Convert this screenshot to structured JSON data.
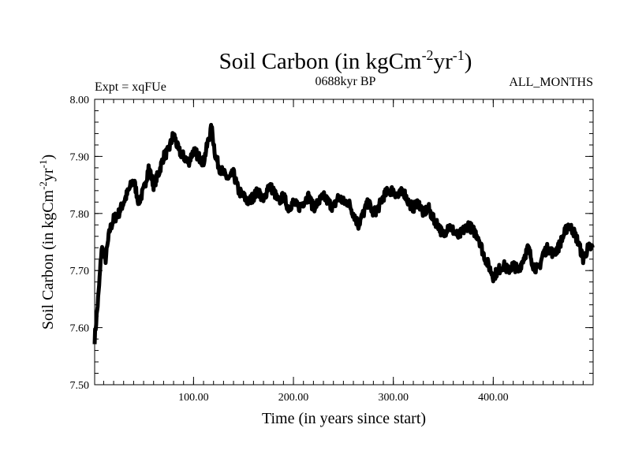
{
  "chart_data": {
    "type": "line",
    "title": {
      "main": "Soil Carbon (in kgCm",
      "sup1": "-2",
      "mid": "yr",
      "sup2": "-1",
      "end": ")"
    },
    "left_label": "Expt = xqFUe",
    "center_label": "0688kyr BP",
    "right_label": "ALL_MONTHS",
    "xlabel": "Time (in years since start)",
    "ylabel": {
      "main": "Soil Carbon (in kgCm",
      "sup1": "-2",
      "mid": "yr",
      "sup2": "-1",
      "end": ")"
    },
    "xlim": [
      1,
      500
    ],
    "ylim": [
      7.5,
      8.0
    ],
    "x_ticks": [
      100,
      200,
      300,
      400
    ],
    "x_tick_labels": [
      "100.00",
      "200.00",
      "300.00",
      "400.00"
    ],
    "y_ticks": [
      7.5,
      7.6,
      7.7,
      7.8,
      7.9,
      8.0
    ],
    "y_tick_labels": [
      "7.50",
      "7.60",
      "7.70",
      "7.80",
      "7.90",
      "8.00"
    ],
    "line_color": "#000000",
    "series": [
      {
        "name": "Soil Carbon",
        "x": [
          1,
          5,
          8,
          12,
          16,
          20,
          25,
          30,
          35,
          40,
          45,
          50,
          55,
          60,
          65,
          70,
          75,
          80,
          85,
          90,
          95,
          100,
          105,
          110,
          115,
          118,
          122,
          126,
          130,
          135,
          140,
          145,
          150,
          155,
          160,
          165,
          170,
          175,
          180,
          185,
          190,
          195,
          200,
          205,
          210,
          215,
          220,
          225,
          230,
          235,
          240,
          245,
          250,
          255,
          260,
          265,
          270,
          275,
          280,
          285,
          290,
          295,
          300,
          305,
          310,
          315,
          320,
          325,
          330,
          335,
          340,
          345,
          350,
          355,
          360,
          365,
          370,
          375,
          380,
          385,
          390,
          395,
          400,
          405,
          410,
          415,
          420,
          425,
          430,
          435,
          440,
          445,
          450,
          455,
          460,
          465,
          470,
          475,
          480,
          485,
          490,
          495,
          500
        ],
        "y": [
          7.58,
          7.66,
          7.74,
          7.72,
          7.77,
          7.79,
          7.8,
          7.82,
          7.84,
          7.86,
          7.82,
          7.84,
          7.88,
          7.85,
          7.87,
          7.9,
          7.91,
          7.94,
          7.91,
          7.9,
          7.89,
          7.91,
          7.9,
          7.89,
          7.93,
          7.95,
          7.9,
          7.88,
          7.87,
          7.86,
          7.87,
          7.84,
          7.83,
          7.82,
          7.83,
          7.84,
          7.82,
          7.85,
          7.84,
          7.82,
          7.83,
          7.81,
          7.82,
          7.81,
          7.82,
          7.83,
          7.81,
          7.82,
          7.83,
          7.82,
          7.81,
          7.83,
          7.82,
          7.82,
          7.8,
          7.78,
          7.8,
          7.82,
          7.8,
          7.81,
          7.83,
          7.84,
          7.84,
          7.83,
          7.84,
          7.82,
          7.81,
          7.82,
          7.8,
          7.81,
          7.79,
          7.78,
          7.76,
          7.78,
          7.77,
          7.76,
          7.77,
          7.78,
          7.77,
          7.76,
          7.73,
          7.71,
          7.69,
          7.7,
          7.71,
          7.7,
          7.71,
          7.7,
          7.72,
          7.74,
          7.71,
          7.7,
          7.73,
          7.74,
          7.73,
          7.74,
          7.76,
          7.78,
          7.77,
          7.75,
          7.72,
          7.74,
          7.74
        ]
      }
    ]
  }
}
